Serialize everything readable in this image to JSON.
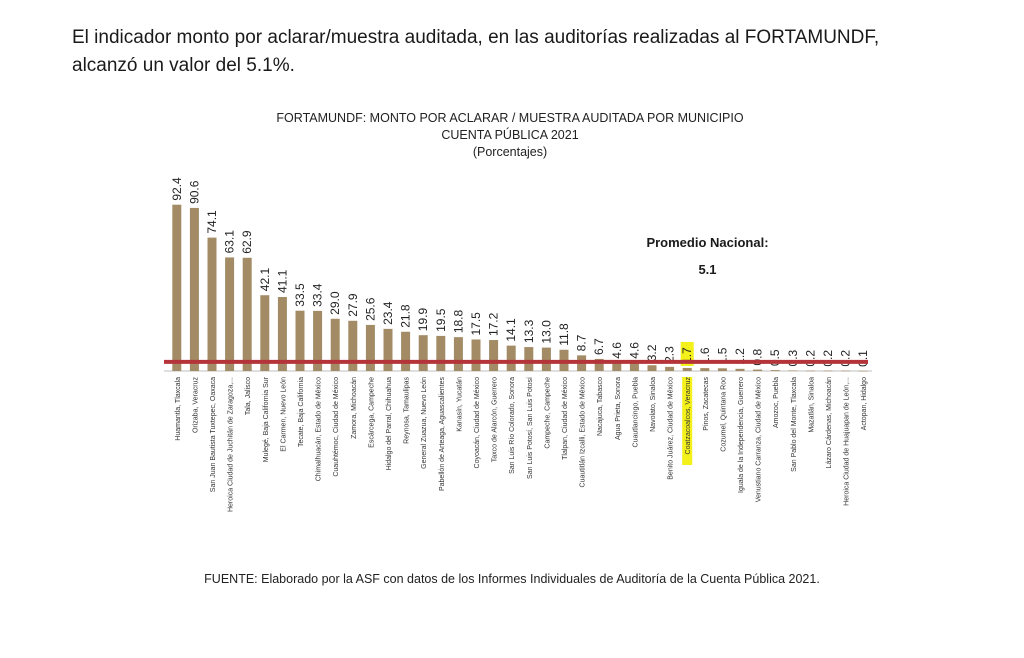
{
  "document": {
    "intro_line1": "El indicador monto por aclarar/muestra auditada, en las auditorías realizadas al FORTAMUNDF,",
    "intro_line2": "alcanzó un valor del 5.1%.",
    "source": "FUENTE: Elaborado por la ASF con datos de los Informes Individuales de Auditoría de la Cuenta Pública 2021."
  },
  "chart_data": {
    "type": "bar",
    "title": "FORTAMUNDF: MONTO POR ACLARAR / MUESTRA AUDITADA POR MUNICIPIO",
    "subtitle": "CUENTA PÚBLICA 2021",
    "unit_label": "(Porcentajes)",
    "reference_line": {
      "label": "Promedio Nacional:",
      "value": 5.1,
      "value_label": "5.1",
      "color": "#b5343a"
    },
    "bar_color": "#a38b66",
    "highlight_color": "#f3f01a",
    "highlight_index": 29,
    "ylim": [
      0,
      100
    ],
    "grid": false,
    "categories": [
      "Huamantla, Tlaxcala",
      "Orizaba, Veracruz",
      "San Juan Bautista Tuxtepec, Oaxaca",
      "Heroica Ciudad de Juchitán de Zaragoza,...",
      "Tala, Jalisco",
      "Mulegé, Baja California Sur",
      "El Carmen, Nuevo León",
      "Tecate, Baja California",
      "Chimalhuacán, Estado de México",
      "Cuauhtémoc, Ciudad de México",
      "Zamora, Michoacán",
      "Escárcega, Campeche",
      "Hidalgo del Parral, Chihuahua",
      "Reynosa, Tamaulipas",
      "General Zuazua, Nuevo León",
      "Pabellón de Arteaga, Aguascalientes",
      "Kanasín, Yucatán",
      "Coyoacán, Ciudad de México",
      "Taxco de Alarcón, Guerrero",
      "San Luis Río Colorado, Sonora",
      "San Luis Potosí, San Luis Potosí",
      "Campeche, Campeche",
      "Tlalpan, Ciudad de México",
      "Cuautitlán Izcalli, Estado de México",
      "Nacajuca, Tabasco",
      "Agua Prieta, Sonora",
      "Cuautlancingo, Puebla",
      "Navolato, Sinaloa",
      "Benito Juárez, Ciudad de México",
      "Coatzacoalcos, Veracruz",
      "Pinos, Zacatecas",
      "Cozumel, Quintana Roo",
      "Iguala de la Independencia, Guerrero",
      "Venustiano Carranza, Ciudad de México",
      "Amozoc, Puebla",
      "San Pablo del Monte, Tlaxcala",
      "Mazatlán, Sinaloa",
      "Lázaro Cárdenas, Michoacán",
      "Heroica Ciudad de Huajuapan de León,...",
      "Actopan, Hidalgo"
    ],
    "values": [
      92.4,
      90.6,
      74.1,
      63.1,
      62.9,
      42.1,
      41.1,
      33.5,
      33.4,
      29.0,
      27.9,
      25.6,
      23.4,
      21.8,
      19.9,
      19.5,
      18.8,
      17.5,
      17.2,
      14.1,
      13.3,
      13.0,
      11.8,
      8.7,
      6.7,
      4.6,
      4.6,
      3.2,
      2.3,
      1.7,
      1.6,
      1.5,
      1.2,
      0.8,
      0.5,
      0.3,
      0.2,
      0.2,
      0.2,
      0.1
    ],
    "value_labels": [
      "92.4",
      "90.6",
      "74.1",
      "63.1",
      "62.9",
      "42.1",
      "41.1",
      "33.5",
      "33.4",
      "29.0",
      "27.9",
      "25.6",
      "23.4",
      "21.8",
      "19.9",
      "19.5",
      "18.8",
      "17.5",
      "17.2",
      "14.1",
      "13.3",
      "13.0",
      "11.8",
      "8.7",
      "6.7",
      "4.6",
      "4.6",
      "3.2",
      "2.3",
      "1.7",
      "1.6",
      "1.5",
      "1.2",
      "0.8",
      "0.5",
      "0.3",
      "0.2",
      "0.2",
      "0.2",
      "0.1"
    ]
  }
}
